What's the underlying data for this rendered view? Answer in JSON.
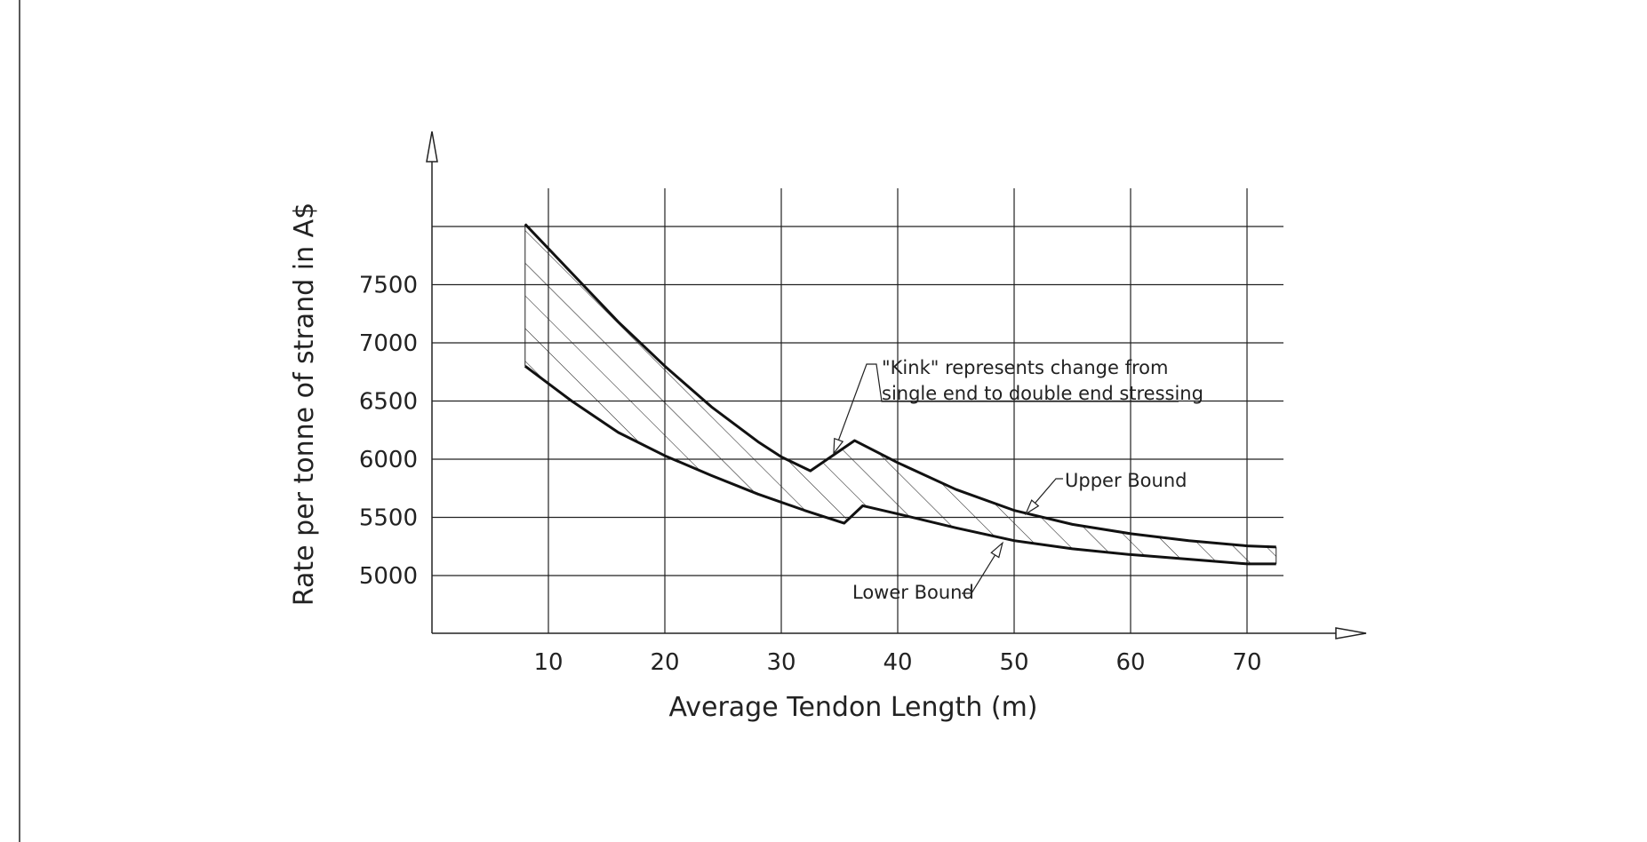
{
  "chart_data": {
    "type": "area",
    "title": "",
    "xlabel": "Average Tendon Length (m)",
    "ylabel": "Rate per tonne of strand in A$",
    "xlim": [
      0,
      80
    ],
    "ylim": [
      4500,
      8000
    ],
    "x_ticks": [
      "10",
      "20",
      "30",
      "40",
      "50",
      "60",
      "70"
    ],
    "y_ticks": [
      "5000",
      "5500",
      "6000",
      "6500",
      "7000",
      "7500"
    ],
    "grid": true,
    "series": [
      {
        "name": "Upper Bound",
        "points": [
          [
            8,
            8020
          ],
          [
            12,
            7600
          ],
          [
            16,
            7180
          ],
          [
            20,
            6800
          ],
          [
            24,
            6450
          ],
          [
            28,
            6150
          ],
          [
            30,
            6020
          ],
          [
            32.5,
            5900
          ],
          [
            36.3,
            6160
          ],
          [
            40,
            5970
          ],
          [
            45,
            5740
          ],
          [
            50,
            5560
          ],
          [
            55,
            5440
          ],
          [
            60,
            5360
          ],
          [
            65,
            5300
          ],
          [
            70,
            5255
          ],
          [
            72.5,
            5245
          ]
        ]
      },
      {
        "name": "Lower Bound",
        "points": [
          [
            8,
            6800
          ],
          [
            12,
            6500
          ],
          [
            16,
            6230
          ],
          [
            20,
            6030
          ],
          [
            24,
            5860
          ],
          [
            28,
            5700
          ],
          [
            32,
            5560
          ],
          [
            35.4,
            5450
          ],
          [
            37,
            5600
          ],
          [
            40,
            5530
          ],
          [
            45,
            5410
          ],
          [
            50,
            5300
          ],
          [
            55,
            5230
          ],
          [
            60,
            5180
          ],
          [
            65,
            5140
          ],
          [
            70,
            5100
          ],
          [
            72.5,
            5100
          ]
        ]
      }
    ],
    "annotations": [
      {
        "id": "kink",
        "lines": [
          "\"Kink\" represents change from",
          "single end to double end stressing"
        ],
        "points_to": [
          34.5,
          6050
        ]
      },
      {
        "id": "upper",
        "text": "Upper Bound",
        "points_to": [
          51,
          5530
        ]
      },
      {
        "id": "lower",
        "text": "Lower Bound",
        "points_to": [
          49,
          5280
        ]
      }
    ]
  }
}
